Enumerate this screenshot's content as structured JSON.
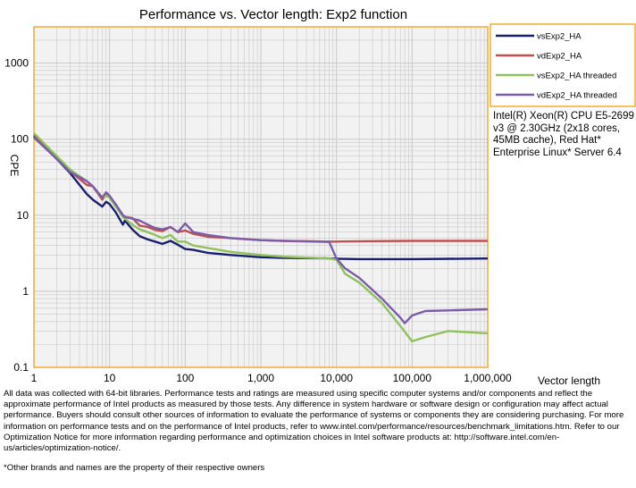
{
  "chart_data": {
    "type": "line",
    "title": "Performance vs. Vector length: Exp2 function",
    "xlabel": "Vector length",
    "ylabel": "CPE",
    "x_scale": "log",
    "y_scale": "log",
    "xlim": [
      1,
      1000000
    ],
    "ylim": [
      0.1,
      3000
    ],
    "grid": true,
    "legend_position": "right",
    "x_ticks": [
      {
        "value": 1,
        "label": "1"
      },
      {
        "value": 10,
        "label": "10"
      },
      {
        "value": 100,
        "label": "100"
      },
      {
        "value": 1000,
        "label": "1,000"
      },
      {
        "value": 10000,
        "label": "10,000"
      },
      {
        "value": 100000,
        "label": "100,000"
      },
      {
        "value": 1000000,
        "label": "1,000,000"
      }
    ],
    "y_ticks": [
      {
        "value": 0.1,
        "label": "0.1"
      },
      {
        "value": 1,
        "label": "1"
      },
      {
        "value": 10,
        "label": "10"
      },
      {
        "value": 100,
        "label": "100"
      },
      {
        "value": 1000,
        "label": "1000"
      }
    ],
    "series": [
      {
        "name": "vsExp2_HA",
        "color": "#1a1f6e",
        "x": [
          1,
          2,
          3,
          5,
          6,
          8,
          9,
          10,
          12,
          15,
          16,
          20,
          25,
          32,
          40,
          50,
          64,
          80,
          100,
          128,
          200,
          400,
          1000,
          2000,
          5000,
          7000,
          8000,
          10000,
          20000,
          100000,
          1000000
        ],
        "y": [
          110,
          55,
          36,
          19,
          16,
          13,
          15,
          14,
          11,
          7.5,
          8.5,
          6.5,
          5.3,
          4.8,
          4.5,
          4.2,
          4.6,
          4.1,
          3.6,
          3.5,
          3.2,
          3.0,
          2.8,
          2.75,
          2.72,
          2.72,
          2.7,
          2.68,
          2.65,
          2.65,
          2.7
        ]
      },
      {
        "name": "vdExp2_HA",
        "color": "#c0504d",
        "x": [
          1,
          2,
          3,
          5,
          6,
          8,
          9,
          10,
          12,
          15,
          16,
          20,
          25,
          32,
          40,
          50,
          64,
          80,
          100,
          128,
          200,
          400,
          1000,
          2000,
          5000,
          7000,
          8000,
          10000,
          20000,
          100000,
          1000000
        ],
        "y": [
          115,
          58,
          38,
          25,
          24,
          16,
          19,
          17,
          14,
          10,
          9.5,
          9.2,
          7.3,
          7.0,
          6.4,
          6.2,
          7.0,
          6.0,
          6.3,
          5.7,
          5.2,
          5.0,
          4.7,
          4.6,
          4.55,
          4.5,
          4.5,
          4.5,
          4.55,
          4.6,
          4.6
        ]
      },
      {
        "name": "vsExp2_HA threaded",
        "color": "#8fc15c",
        "x": [
          1,
          2,
          3,
          5,
          6,
          8,
          9,
          10,
          12,
          15,
          16,
          20,
          25,
          32,
          40,
          50,
          64,
          80,
          100,
          128,
          200,
          400,
          1000,
          2000,
          5000,
          8000,
          10000,
          13000,
          20000,
          40000,
          70000,
          100000,
          150000,
          300000,
          1000000
        ],
        "y": [
          120,
          60,
          40,
          28,
          24,
          17,
          18,
          17,
          13,
          9.5,
          9.0,
          7.5,
          6.5,
          6.0,
          5.5,
          5.0,
          5.5,
          4.5,
          4.5,
          4.0,
          3.7,
          3.3,
          3.0,
          2.85,
          2.75,
          2.7,
          2.6,
          1.7,
          1.3,
          0.7,
          0.35,
          0.22,
          0.25,
          0.3,
          0.28
        ]
      },
      {
        "name": "vdExp2_HA threaded",
        "color": "#7c5ca8",
        "x": [
          1,
          2,
          3,
          5,
          6,
          8,
          9,
          10,
          12,
          15,
          16,
          20,
          25,
          32,
          40,
          50,
          64,
          80,
          100,
          128,
          200,
          400,
          1000,
          2000,
          5000,
          8000,
          10000,
          13000,
          20000,
          40000,
          70000,
          80000,
          100000,
          150000,
          300000,
          1000000
        ],
        "y": [
          105,
          55,
          37,
          28,
          24,
          17,
          20,
          18,
          14,
          10,
          9.5,
          9.0,
          8.5,
          7.5,
          6.8,
          6.5,
          7.0,
          6.0,
          7.8,
          6.0,
          5.5,
          5.0,
          4.7,
          4.6,
          4.5,
          4.45,
          2.7,
          2.0,
          1.5,
          0.8,
          0.45,
          0.38,
          0.48,
          0.55,
          0.56,
          0.58
        ]
      }
    ]
  },
  "cpu_info": "Intel(R) Xeon(R) CPU E5-2699 v3 @ 2.30GHz (2x18 cores, 45MB cache), Red Hat* Enterprise Linux* Server 6.4",
  "disclaimer": "All data was collected with 64-bit libraries. Performance tests and ratings are measured using specific computer systems and/or components and reflect the approximate performance of Intel products as measured by those tests. Any difference in system hardware or software design or configuration may affect actual performance. Buyers should consult other sources of information to evaluate the performance of systems or components they are considering purchasing. For more information on performance tests and on the performance of Intel products, refer to www.intel.com/performance/resources/benchmark_limitations.htm. Refer to our Optimization Notice for more information regarding performance and optimization choices in Intel software products at: http://software.intel.com/en-us/articles/optimization-notice/.",
  "trademark": "*Other brands and names are the property of their respective owners",
  "colors": {
    "plot_border": "#f5a623",
    "plot_bg": "#f2f2f2",
    "grid": "#c8c8c8"
  }
}
